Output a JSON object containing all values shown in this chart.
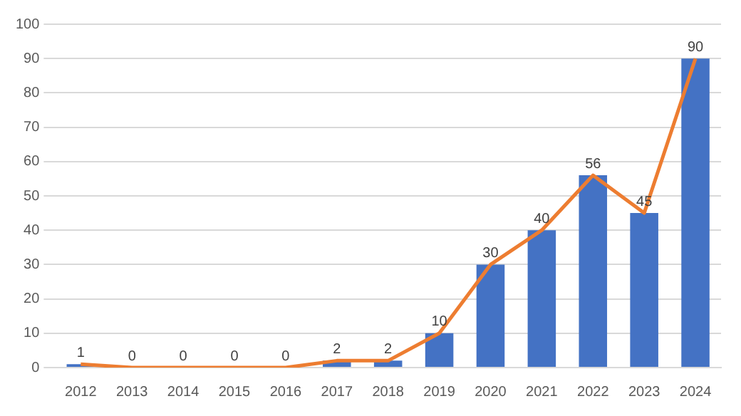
{
  "chart_data": {
    "type": "bar",
    "categories": [
      "2012",
      "2013",
      "2014",
      "2015",
      "2016",
      "2017",
      "2018",
      "2019",
      "2020",
      "2021",
      "2022",
      "2023",
      "2024"
    ],
    "series": [
      {
        "color": "#4472c4",
        "values": [
          1,
          0,
          0,
          0,
          0,
          2,
          2,
          10,
          30,
          40,
          56,
          45,
          90
        ],
        "value_labels": [
          "1",
          "0",
          "0",
          "0",
          "0",
          "2",
          "2",
          "10",
          "30",
          "40",
          "56",
          "45",
          "90"
        ]
      },
      {
        "type": "line",
        "color": "#ed7d31",
        "values": [
          1,
          0,
          0,
          0,
          0,
          2,
          2,
          10,
          30,
          40,
          56,
          45,
          90
        ]
      }
    ],
    "ylim": [
      0,
      100
    ],
    "yticks": [
      0,
      10,
      20,
      30,
      40,
      50,
      60,
      70,
      80,
      90,
      100
    ],
    "grid": "y"
  }
}
